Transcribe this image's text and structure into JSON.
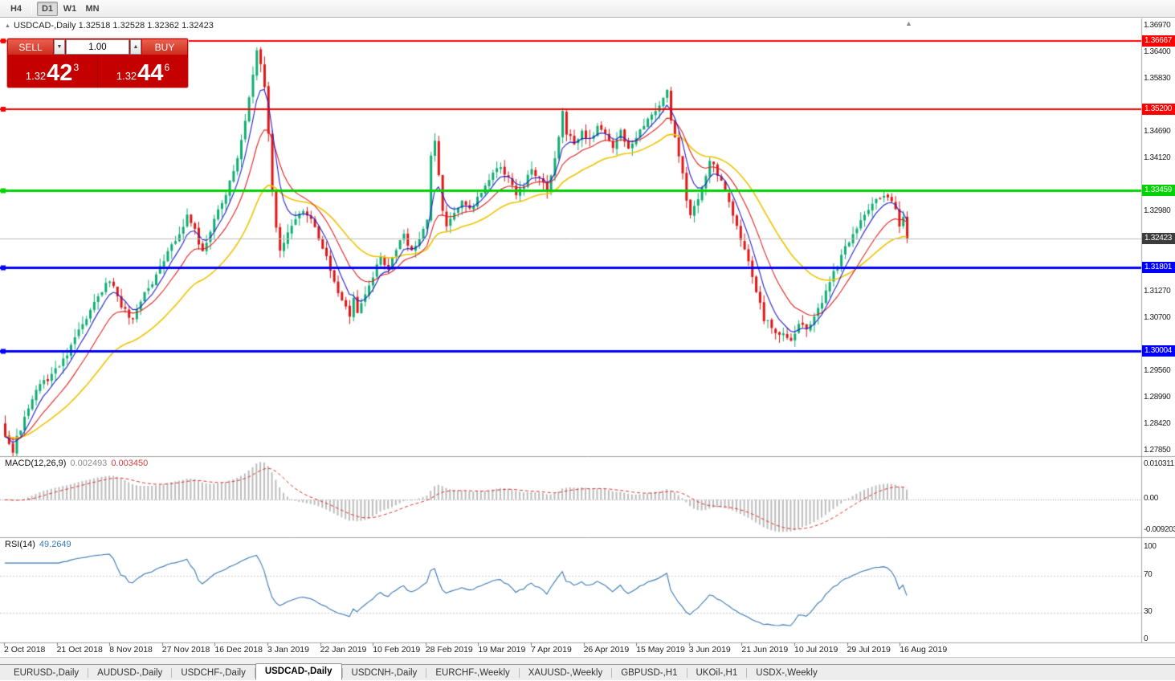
{
  "toolbar": {
    "timeframes": [
      "H4",
      "D1",
      "W1",
      "MN"
    ],
    "active": "D1"
  },
  "icons": {
    "collapse_triangle": "▲",
    "shift_marker": "▲",
    "volume_down": "▼",
    "volume_up": "▲"
  },
  "chart": {
    "ohlc_header": "USDCAD-,Daily  1.32518 1.32528 1.32362 1.32423",
    "trade_panel": {
      "sell_label": "SELL",
      "buy_label": "BUY",
      "volume": "1.00",
      "bid": {
        "prefix": "1.32",
        "big": "42",
        "sup": "3"
      },
      "ask": {
        "prefix": "1.32",
        "big": "44",
        "sup": "6"
      }
    }
  },
  "chart_data": {
    "type": "candlestick",
    "symbol": "USDCAD-",
    "timeframe": "Daily",
    "open": 1.32518,
    "high": 1.32528,
    "low": 1.32362,
    "close": 1.32423,
    "current_price": 1.32423,
    "price_axis": {
      "min": 1.2785,
      "max": 1.3697,
      "ticks": [
        1.3697,
        1.364,
        1.3583,
        1.3526,
        1.3469,
        1.3412,
        1.3355,
        1.3298,
        1.3241,
        1.3184,
        1.3127,
        1.307,
        1.3013,
        1.2956,
        1.2899,
        1.2842,
        1.2785
      ]
    },
    "hlines": [
      {
        "value": 1.36667,
        "label": "1.36667",
        "color": "#ff0000",
        "width": 2
      },
      {
        "value": 1.352,
        "label": "1.35200",
        "color": "#ff0000",
        "width": 2
      },
      {
        "value": 1.33459,
        "label": "1.33459",
        "color": "#00d400",
        "width": 3
      },
      {
        "value": 1.31801,
        "label": "1.31801",
        "color": "#0000ff",
        "width": 3
      },
      {
        "value": 1.30004,
        "label": "1.30004",
        "color": "#0000ff",
        "width": 3
      }
    ],
    "x_labels": [
      "2 Oct 2018",
      "21 Oct 2018",
      "8 Nov 2018",
      "27 Nov 2018",
      "16 Dec 2018",
      "3 Jan 2019",
      "22 Jan 2019",
      "10 Feb 2019",
      "28 Feb 2019",
      "19 Mar 2019",
      "7 Apr 2019",
      "26 Apr 2019",
      "15 May 2019",
      "3 Jun 2019",
      "21 Jun 2019",
      "10 Jul 2019",
      "29 Jul 2019",
      "16 Aug 2019"
    ],
    "candle_count": 234,
    "close_anchors": [
      [
        0,
        1.282
      ],
      [
        2,
        1.2788
      ],
      [
        5,
        1.286
      ],
      [
        8,
        1.292
      ],
      [
        12,
        1.295
      ],
      [
        16,
        1.2995
      ],
      [
        20,
        1.306
      ],
      [
        24,
        1.312
      ],
      [
        27,
        1.3155
      ],
      [
        30,
        1.31
      ],
      [
        33,
        1.3065
      ],
      [
        36,
        1.312
      ],
      [
        40,
        1.318
      ],
      [
        44,
        1.324
      ],
      [
        47,
        1.329
      ],
      [
        49,
        1.326
      ],
      [
        51,
        1.321
      ],
      [
        53,
        1.326
      ],
      [
        56,
        1.332
      ],
      [
        58,
        1.336
      ],
      [
        60,
        1.342
      ],
      [
        62,
        1.35
      ],
      [
        64,
        1.36
      ],
      [
        65,
        1.365
      ],
      [
        66,
        1.362
      ],
      [
        67,
        1.356
      ],
      [
        68,
        1.347
      ],
      [
        69,
        1.335
      ],
      [
        70,
        1.327
      ],
      [
        71,
        1.322
      ],
      [
        73,
        1.325
      ],
      [
        75,
        1.328
      ],
      [
        77,
        1.33
      ],
      [
        79,
        1.328
      ],
      [
        81,
        1.324
      ],
      [
        83,
        1.32
      ],
      [
        85,
        1.315
      ],
      [
        87,
        1.311
      ],
      [
        89,
        1.308
      ],
      [
        90,
        1.311
      ],
      [
        91,
        1.3078
      ],
      [
        93,
        1.312
      ],
      [
        95,
        1.316
      ],
      [
        97,
        1.32
      ],
      [
        99,
        1.318
      ],
      [
        101,
        1.322
      ],
      [
        103,
        1.325
      ],
      [
        105,
        1.3215
      ],
      [
        107,
        1.324
      ],
      [
        109,
        1.328
      ],
      [
        110,
        1.342
      ],
      [
        111,
        1.345
      ],
      [
        112,
        1.338
      ],
      [
        113,
        1.33
      ],
      [
        114,
        1.327
      ],
      [
        116,
        1.329
      ],
      [
        118,
        1.332
      ],
      [
        120,
        1.33
      ],
      [
        122,
        1.333
      ],
      [
        124,
        1.336
      ],
      [
        126,
        1.338
      ],
      [
        128,
        1.34
      ],
      [
        130,
        1.337
      ],
      [
        132,
        1.334
      ],
      [
        134,
        1.336
      ],
      [
        136,
        1.339
      ],
      [
        138,
        1.337
      ],
      [
        140,
        1.334
      ],
      [
        143,
        1.346
      ],
      [
        144,
        1.351
      ],
      [
        145,
        1.347
      ],
      [
        147,
        1.344
      ],
      [
        149,
        1.347
      ],
      [
        151,
        1.345
      ],
      [
        153,
        1.348
      ],
      [
        155,
        1.346
      ],
      [
        157,
        1.344
      ],
      [
        159,
        1.347
      ],
      [
        161,
        1.344
      ],
      [
        163,
        1.346
      ],
      [
        165,
        1.349
      ],
      [
        168,
        1.352
      ],
      [
        170,
        1.3545
      ],
      [
        171,
        1.3555
      ],
      [
        172,
        1.35
      ],
      [
        174,
        1.342
      ],
      [
        176,
        1.333
      ],
      [
        177,
        1.329
      ],
      [
        179,
        1.333
      ],
      [
        181,
        1.337
      ],
      [
        182,
        1.341
      ],
      [
        184,
        1.338
      ],
      [
        186,
        1.334
      ],
      [
        188,
        1.329
      ],
      [
        190,
        1.324
      ],
      [
        192,
        1.319
      ],
      [
        194,
        1.313
      ],
      [
        196,
        1.307
      ],
      [
        198,
        1.305
      ],
      [
        200,
        1.304
      ],
      [
        203,
        1.3025
      ],
      [
        205,
        1.306
      ],
      [
        207,
        1.304
      ],
      [
        209,
        1.308
      ],
      [
        211,
        1.311
      ],
      [
        213,
        1.315
      ],
      [
        215,
        1.318
      ],
      [
        217,
        1.322
      ],
      [
        219,
        1.325
      ],
      [
        221,
        1.328
      ],
      [
        223,
        1.33
      ],
      [
        225,
        1.332
      ],
      [
        228,
        1.333
      ],
      [
        230,
        1.33
      ],
      [
        231,
        1.327
      ],
      [
        232,
        1.329
      ],
      [
        233,
        1.3242
      ]
    ],
    "macd": {
      "name": "MACD(12,26,9)",
      "value_main": "0.002493",
      "value_signal": "0.003450",
      "scale": [
        0.010311,
        0,
        -0.009203
      ],
      "scale_labels": [
        "0.010311",
        "0.00",
        "-0.009203"
      ]
    },
    "rsi": {
      "name": "RSI(14)",
      "value": "49.2649",
      "levels": [
        100,
        70,
        30,
        0
      ]
    },
    "colors": {
      "up": "#0fae72",
      "down": "#df1616",
      "ma_yellow": "#f0c400",
      "ma_red": "#e02020",
      "ma_blue": "#2020cc",
      "macd_hist": "#bdbdbd",
      "macd_signal": "#e03030",
      "rsi": "#3a78b5"
    }
  },
  "tabs": [
    {
      "label": "EURUSD-,Daily",
      "active": false
    },
    {
      "label": "AUDUSD-,Daily",
      "active": false
    },
    {
      "label": "USDCHF-,Daily",
      "active": false
    },
    {
      "label": "USDCAD-,Daily",
      "active": true
    },
    {
      "label": "USDCNH-,Daily",
      "active": false
    },
    {
      "label": "EURCHF-,Weekly",
      "active": false
    },
    {
      "label": "XAUUSD-,Weekly",
      "active": false
    },
    {
      "label": "GBPUSD-,H1",
      "active": false
    },
    {
      "label": "UKOil-,H1",
      "active": false
    },
    {
      "label": "USDX-,Weekly",
      "active": false
    }
  ]
}
